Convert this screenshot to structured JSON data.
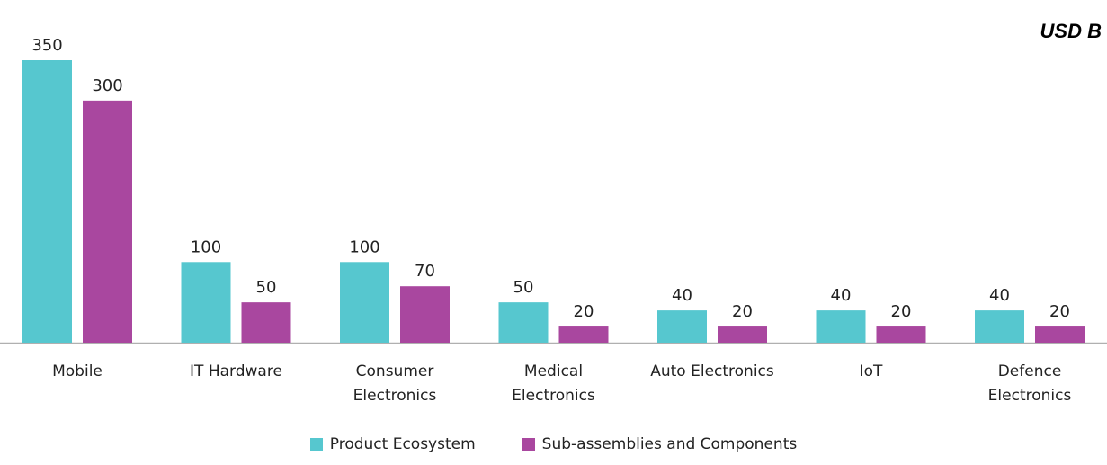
{
  "unit_label": "USD B",
  "colors": {
    "product_ecosystem": "#56C7CF",
    "sub_assemblies": "#A9479F",
    "baseline": "#b0b0b0",
    "text": "#222222"
  },
  "chart_data": {
    "type": "bar",
    "categories": [
      [
        "Mobile"
      ],
      [
        "IT Hardware"
      ],
      [
        "Consumer",
        "Electronics"
      ],
      [
        "Medical",
        "Electronics"
      ],
      [
        "Auto Electronics"
      ],
      [
        "IoT"
      ],
      [
        "Defence",
        "Electronics"
      ]
    ],
    "series": [
      {
        "name": "Product Ecosystem",
        "values": [
          350,
          100,
          100,
          50,
          40,
          40,
          40
        ]
      },
      {
        "name": "Sub-assemblies and Components",
        "values": [
          300,
          50,
          70,
          20,
          20,
          20,
          20
        ]
      }
    ],
    "ylim": [
      0,
      350
    ],
    "grid": false,
    "legend_position": "bottom-center",
    "data_labels": true
  }
}
